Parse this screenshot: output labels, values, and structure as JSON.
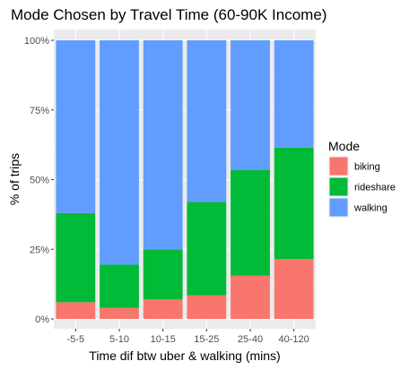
{
  "chart_data": {
    "type": "bar",
    "stacked": "percent",
    "title": "Mode Chosen by Travel Time (60-90K Income)",
    "xlabel": "Time dif btw uber & walking (mins)",
    "ylabel": "% of trips",
    "categories": [
      "-5-5",
      "5-10",
      "10-15",
      "15-25",
      "25-40",
      "40-120"
    ],
    "ylim": [
      0,
      1
    ],
    "yticks": [
      0,
      0.25,
      0.5,
      0.75,
      1.0
    ],
    "ytick_labels": [
      "0%",
      "25%",
      "50%",
      "75%",
      "100%"
    ],
    "grid": true,
    "legend": {
      "title": "Mode",
      "position": "right"
    },
    "series": [
      {
        "name": "biking",
        "color": "#F8766D",
        "values": [
          0.06,
          0.04,
          0.07,
          0.085,
          0.155,
          0.215
        ]
      },
      {
        "name": "rideshare",
        "color": "#00BA38",
        "values": [
          0.32,
          0.155,
          0.18,
          0.335,
          0.38,
          0.4
        ]
      },
      {
        "name": "walking",
        "color": "#619CFF",
        "values": [
          0.62,
          0.805,
          0.75,
          0.58,
          0.465,
          0.385
        ]
      }
    ]
  }
}
